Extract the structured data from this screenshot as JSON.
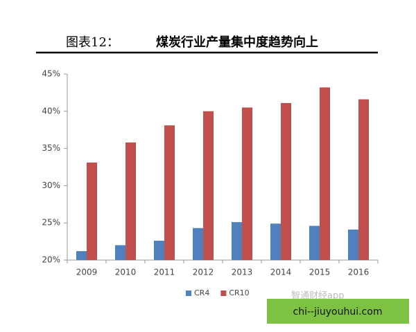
{
  "chart_data": {
    "type": "bar",
    "label": "图表12：",
    "title": "煤炭行业产量集中度趋势向上",
    "categories": [
      "2009",
      "2010",
      "2011",
      "2012",
      "2013",
      "2014",
      "2015",
      "2016"
    ],
    "series": [
      {
        "name": "CR4",
        "color": "#4f81bd",
        "values": [
          21.2,
          22.0,
          22.6,
          24.3,
          25.1,
          24.9,
          24.6,
          24.1
        ]
      },
      {
        "name": "CR10",
        "color": "#c0504d",
        "values": [
          33.1,
          35.8,
          38.1,
          40.0,
          40.5,
          41.1,
          43.2,
          41.6
        ]
      }
    ],
    "ylim": [
      20,
      45
    ],
    "yticks": [
      {
        "value": 20,
        "label": "20%"
      },
      {
        "value": 25,
        "label": "25%"
      },
      {
        "value": 30,
        "label": "30%"
      },
      {
        "value": 35,
        "label": "35%"
      },
      {
        "value": 40,
        "label": "40%"
      },
      {
        "value": 45,
        "label": "45%"
      }
    ],
    "grid": false,
    "legend": "bottom",
    "watermark": "智通财经app",
    "banner": "chi--jiuyouhui.com"
  }
}
